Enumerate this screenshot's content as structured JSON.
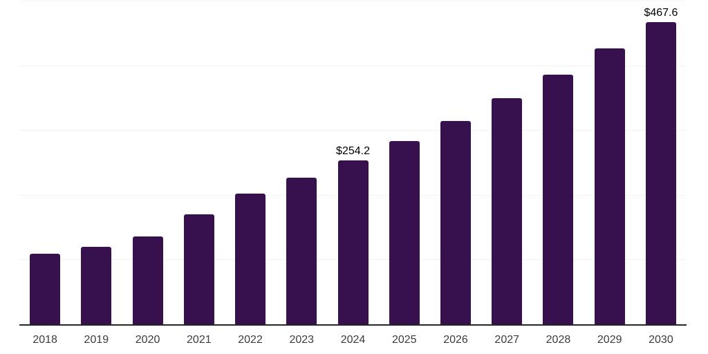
{
  "chart_data": {
    "type": "bar",
    "title": "",
    "xlabel": "",
    "ylabel": "",
    "categories": [
      "2018",
      "2019",
      "2020",
      "2021",
      "2022",
      "2023",
      "2024",
      "2025",
      "2026",
      "2027",
      "2028",
      "2029",
      "2030"
    ],
    "values": [
      110,
      121,
      137,
      171,
      203,
      228,
      254.2,
      284,
      315,
      350,
      387,
      427,
      467.6
    ],
    "data_labels": [
      "",
      "",
      "",
      "",
      "",
      "",
      "$254.2",
      "",
      "",
      "",
      "",
      "",
      "$467.6"
    ],
    "value_prefix": "$",
    "ylim": [
      0,
      500
    ],
    "gridline_values": [
      100,
      200,
      300,
      400,
      500
    ],
    "grid": "horizontal-only",
    "legend": "none",
    "colors": {
      "bar": "#36114d",
      "gridline": "#f2f2f2",
      "axis_line": "#262626",
      "tick_label": "#3c3c3c",
      "data_label": "#000000",
      "background": "#ffffff"
    }
  }
}
